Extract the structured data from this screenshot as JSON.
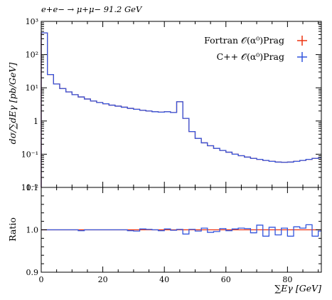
{
  "header": {
    "process": "e+e− → μ+μ− 91.2 GeV"
  },
  "chart_data": {
    "type": "histogram",
    "x_bin_width": 2,
    "x_range": [
      0,
      91
    ],
    "xlabel": "∑Eγ [GeV]",
    "x_ticks": [
      "0",
      "20",
      "40",
      "60",
      "80"
    ],
    "x_tick_values": [
      0,
      20,
      40,
      60,
      80
    ],
    "main": {
      "ylabel": "dσ/∑dEγ [pb/GeV]",
      "yscale": "log",
      "ylim": [
        0.01,
        1000
      ],
      "y_ticks": [
        "10⁻²",
        "10⁻¹",
        "1",
        "10¹",
        "10²",
        "10³"
      ],
      "y_tick_values": [
        0.01,
        0.1,
        1,
        10,
        100,
        1000
      ],
      "series": [
        {
          "name": "Fortran 𝒪(α⁰)Prag",
          "color": "#ee3311",
          "values": [
            450,
            25,
            13,
            9.5,
            7.5,
            6.2,
            5.3,
            4.6,
            4.0,
            3.6,
            3.3,
            3.0,
            2.8,
            2.6,
            2.4,
            2.25,
            2.1,
            2.0,
            1.9,
            1.85,
            1.9,
            1.8,
            3.8,
            1.2,
            0.48,
            0.3,
            0.22,
            0.18,
            0.15,
            0.13,
            0.115,
            0.1,
            0.09,
            0.082,
            0.075,
            0.07,
            0.065,
            0.061,
            0.058,
            0.057,
            0.058,
            0.061,
            0.065,
            0.07,
            0.075,
            0.078
          ]
        },
        {
          "name": "C++ 𝒪(α⁰)Prag",
          "color": "#3355dd",
          "values": [
            450,
            25,
            13,
            9.5,
            7.5,
            6.2,
            5.3,
            4.6,
            4.0,
            3.6,
            3.3,
            3.0,
            2.8,
            2.6,
            2.4,
            2.25,
            2.1,
            2.0,
            1.9,
            1.85,
            1.9,
            1.8,
            3.8,
            1.2,
            0.48,
            0.3,
            0.22,
            0.18,
            0.15,
            0.13,
            0.115,
            0.1,
            0.09,
            0.082,
            0.075,
            0.07,
            0.065,
            0.061,
            0.058,
            0.057,
            0.058,
            0.061,
            0.065,
            0.07,
            0.075,
            0.078
          ]
        }
      ]
    },
    "ratio": {
      "ylabel": "Ratio",
      "ylim": [
        0.9,
        1.1
      ],
      "y_ticks": [
        "0.9",
        "1.0",
        "1.1"
      ],
      "y_tick_values": [
        0.9,
        1.0,
        1.1
      ],
      "reference_value": 1.0,
      "reference_color": "#ee3311",
      "values": [
        1.0,
        1.0,
        1.0,
        1.0,
        1.0,
        1.0,
        0.998,
        1.0,
        1.0,
        1.0,
        1.0,
        1.0,
        1.0,
        1.0,
        0.998,
        0.997,
        1.002,
        1.001,
        1.0,
        0.998,
        1.002,
        0.999,
        1.001,
        0.99,
        1.001,
        0.997,
        1.004,
        0.994,
        0.996,
        1.003,
        0.998,
        1.002,
        1.004,
        1.003,
        0.993,
        1.011,
        0.985,
        1.006,
        0.988,
        1.004,
        0.985,
        1.007,
        1.004,
        1.012,
        0.985,
        0.997
      ]
    },
    "legend": {
      "placement": "top-right"
    }
  }
}
